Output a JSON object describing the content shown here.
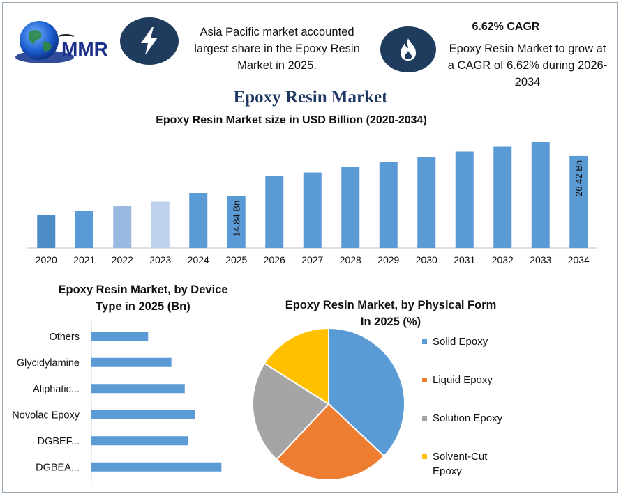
{
  "header": {
    "logo_text": "MMR",
    "highlight_left": [
      "Asia Pacific market accounted",
      "largest share in the Epoxy Resin",
      "Market in 2025."
    ],
    "cagr_title": "6.62% CAGR",
    "highlight_right": [
      "Epoxy Resin Market to grow at",
      "a CAGR of 6.62% during 2026-",
      "2034"
    ],
    "icon_left": "lightning-icon",
    "icon_right": "flame-icon",
    "icon_color": "#1f3c5e"
  },
  "main_title": "Epoxy Resin Market",
  "chart_data": [
    {
      "type": "bar",
      "title": "Epoxy Resin Market size in USD Billion (2020-2034)",
      "categories": [
        "2020",
        "2021",
        "2022",
        "2023",
        "2024",
        "2025",
        "2026",
        "2027",
        "2028",
        "2029",
        "2030",
        "2031",
        "2032",
        "2033",
        "2034"
      ],
      "values": [
        9.5,
        10.6,
        12.0,
        13.3,
        15.8,
        14.84,
        20.8,
        21.7,
        23.2,
        24.6,
        26.2,
        27.7,
        29.1,
        30.4,
        26.42
      ],
      "bar_colors": [
        "#4e8cc8",
        "#5b9bd5",
        "#9ab9e1",
        "#bed0ec",
        "#5b9bd5",
        "#5b9bd5",
        "#5b9bd5",
        "#5b9bd5",
        "#5b9bd5",
        "#5b9bd5",
        "#5b9bd5",
        "#5b9bd5",
        "#5b9bd5",
        "#5b9bd5",
        "#5b9bd5"
      ],
      "data_labels": [
        {
          "category": "2025",
          "label": "14.84 Bn"
        },
        {
          "category": "2034",
          "label": "26.42 Bn"
        }
      ],
      "ylim": [
        0,
        32
      ],
      "grid": false
    },
    {
      "type": "bar",
      "orientation": "horizontal",
      "title": [
        "Epoxy Resin Market, by Device",
        "Type in 2025 (Bn)"
      ],
      "categories": [
        "Others",
        "Glycidylamine",
        "Aliphatic...",
        "Novolac Epoxy",
        "DGBEF...",
        "DGBEA..."
      ],
      "values": [
        1.7,
        2.4,
        2.8,
        3.1,
        2.9,
        3.9
      ],
      "xlim": [
        0,
        4.5
      ],
      "color": "#5b9bd5",
      "grid": false
    },
    {
      "type": "pie",
      "title": [
        "Epoxy Resin Market, by Physical Form",
        "In 2025 (%)"
      ],
      "categories": [
        "Solid Epoxy",
        "Liquid Epoxy",
        "Solution Epoxy",
        "Solvent-Cut Epoxy"
      ],
      "legend_lines": [
        [
          "Solid Epoxy"
        ],
        [
          "Liquid Epoxy"
        ],
        [
          "Solution Epoxy"
        ],
        [
          "Solvent-Cut",
          "Epoxy"
        ]
      ],
      "values": [
        37,
        25,
        22,
        16
      ],
      "colors": [
        "#5b9bd5",
        "#ed7d31",
        "#a5a5a5",
        "#ffc000"
      ],
      "legend": "right"
    }
  ]
}
